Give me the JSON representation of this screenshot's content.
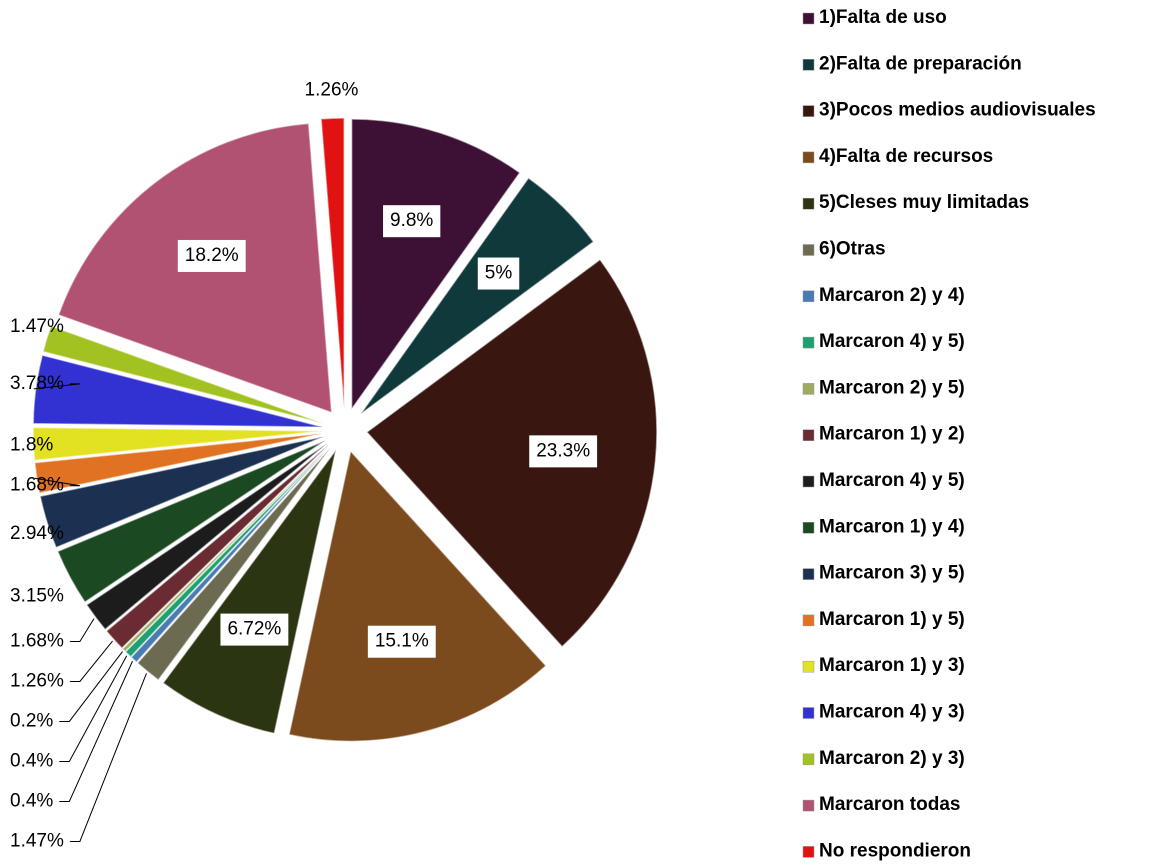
{
  "chart_data": {
    "type": "pie",
    "categories": [
      "1)Falta de uso",
      "2)Falta de preparación",
      "3)Pocos  medios audiovisuales",
      "4)Falta de recursos",
      "5)Cleses muy limitadas",
      "6)Otras",
      "Marcaron  2)  y 4)",
      "Marcaron  4)  y 5)",
      "Marcaron 2) y 5)",
      "Marcaron 1) y 2)",
      "Marcaron 4) y 5)",
      "Marcaron 1) y 4)",
      "Marcaron 3) y 5)",
      "Marcaron 1) y 5)",
      "Marcaron 1) y 3)",
      "Marcaron 4) y 3)",
      "Marcaron 2) y 3)",
      "Marcaron todas",
      "No respondieron"
    ],
    "values": [
      9.8,
      5,
      23.3,
      15.1,
      6.72,
      1.47,
      0.4,
      0.4,
      0.2,
      1.26,
      1.68,
      3.15,
      2.94,
      1.68,
      1.8,
      3.78,
      1.47,
      18.2,
      1.26
    ],
    "value_labels": [
      "9.8%",
      "5%",
      "23.3%",
      "15.1%",
      "6.72%",
      "1.47%",
      "0.4%",
      "0.4%",
      "0.2%",
      "1.26%",
      "1.68%",
      "3.15%",
      "2.94%",
      "1.68%",
      "1.8%",
      "3.78%",
      "1.47%",
      "18.2%",
      "1.26%"
    ],
    "colors": [
      "#3d1036",
      "#10393c",
      "#3a1610",
      "#7b4a1d",
      "#2b3512",
      "#6d6a52",
      "#4a7bb2",
      "#1fa070",
      "#9cab62",
      "#6b2b32",
      "#1c1c1c",
      "#1b4a22",
      "#1c3152",
      "#e07222",
      "#e2e222",
      "#3232d2",
      "#a2c222",
      "#b25272",
      "#e21212"
    ],
    "legend": "right"
  }
}
